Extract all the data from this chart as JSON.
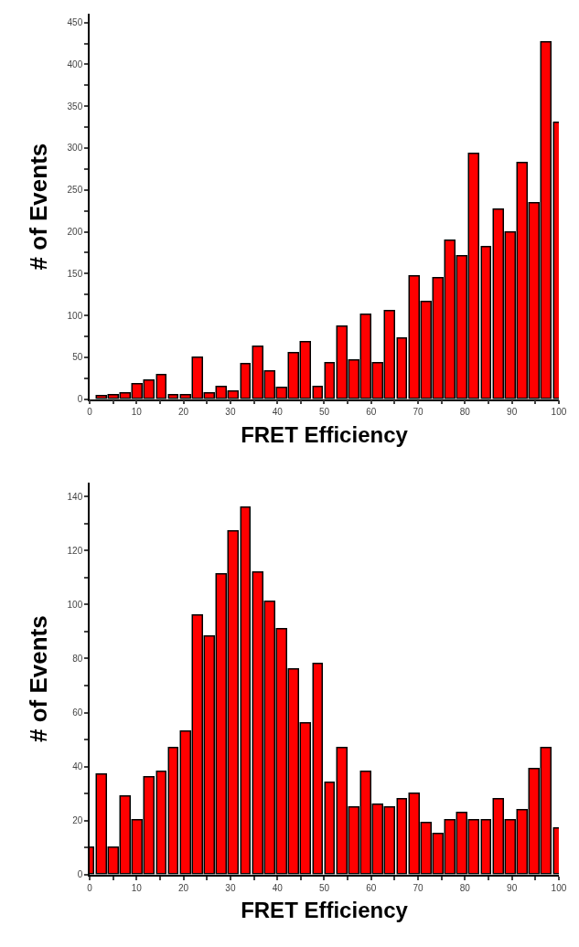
{
  "chart_data": [
    {
      "type": "bar",
      "xlabel": "FRET Efficiency",
      "ylabel": "# of Events",
      "color": "#ff0000",
      "grid": false,
      "x": [
        2.56,
        5.13,
        7.69,
        10.26,
        12.82,
        15.38,
        17.95,
        20.51,
        23.08,
        25.64,
        28.21,
        30.77,
        33.33,
        35.9,
        38.46,
        41.03,
        43.59,
        46.15,
        48.72,
        51.28,
        53.85,
        56.41,
        58.97,
        61.54,
        64.1,
        66.67,
        69.23,
        71.79,
        74.36,
        76.92,
        79.49,
        82.05,
        84.62,
        87.18,
        89.74,
        92.31,
        94.87,
        97.44,
        100
      ],
      "values": [
        4,
        5,
        7,
        18,
        22,
        29,
        5,
        5,
        49,
        7,
        15,
        9,
        42,
        63,
        33,
        13,
        55,
        68,
        15,
        43,
        87,
        46,
        101,
        43,
        105,
        72,
        147,
        116,
        144,
        189,
        171,
        293,
        182,
        226,
        199,
        282,
        234,
        426,
        330
      ],
      "xlim": [
        0,
        100
      ],
      "ylim": [
        0,
        460
      ],
      "xticks": [
        0,
        {
          "value": 5,
          "label": null
        },
        10,
        {
          "value": 15,
          "label": null
        },
        20,
        {
          "value": 25,
          "label": null
        },
        30,
        {
          "value": 35,
          "label": null
        },
        40,
        {
          "value": 45,
          "label": null
        },
        50,
        {
          "value": 55,
          "label": null
        },
        60,
        {
          "value": 65,
          "label": null
        },
        70,
        {
          "value": 75,
          "label": null
        },
        80,
        {
          "value": 85,
          "label": null
        },
        90,
        {
          "value": 95,
          "label": null
        },
        100
      ],
      "yticks": [
        0,
        {
          "value": 25,
          "label": null
        },
        50,
        {
          "value": 75,
          "label": null
        },
        100,
        {
          "value": 125,
          "label": null
        },
        150,
        {
          "value": 175,
          "label": null
        },
        200,
        {
          "value": 225,
          "label": null
        },
        250,
        {
          "value": 275,
          "label": null
        },
        300,
        {
          "value": 325,
          "label": null
        },
        350,
        {
          "value": 375,
          "label": null
        },
        400,
        {
          "value": 425,
          "label": null
        },
        450
      ]
    },
    {
      "type": "bar",
      "xlabel": "FRET Efficiency",
      "ylabel": "# of Events",
      "color": "#ff0000",
      "grid": false,
      "x": [
        0,
        2.56,
        5.13,
        7.69,
        10.26,
        12.82,
        15.38,
        17.95,
        20.51,
        23.08,
        25.64,
        28.21,
        30.77,
        33.33,
        35.9,
        38.46,
        41.03,
        43.59,
        46.15,
        48.72,
        51.28,
        53.85,
        56.41,
        58.97,
        61.54,
        64.1,
        66.67,
        69.23,
        71.79,
        74.36,
        76.92,
        79.49,
        82.05,
        84.62,
        87.18,
        89.74,
        92.31,
        94.87,
        97.44,
        100
      ],
      "values": [
        10,
        37,
        10,
        29,
        20,
        36,
        38,
        47,
        53,
        96,
        88,
        111,
        127,
        136,
        112,
        101,
        91,
        76,
        56,
        78,
        34,
        47,
        25,
        38,
        26,
        25,
        28,
        30,
        19,
        15,
        20,
        23,
        20,
        20,
        28,
        20,
        24,
        39,
        47,
        17
      ],
      "xlim": [
        0,
        100
      ],
      "ylim": [
        0,
        145
      ],
      "xticks": [
        0,
        {
          "value": 5,
          "label": null
        },
        10,
        {
          "value": 15,
          "label": null
        },
        20,
        {
          "value": 25,
          "label": null
        },
        30,
        {
          "value": 35,
          "label": null
        },
        40,
        {
          "value": 45,
          "label": null
        },
        50,
        {
          "value": 55,
          "label": null
        },
        60,
        {
          "value": 65,
          "label": null
        },
        70,
        {
          "value": 75,
          "label": null
        },
        80,
        {
          "value": 85,
          "label": null
        },
        90,
        {
          "value": 95,
          "label": null
        },
        100
      ],
      "yticks": [
        0,
        {
          "value": 10,
          "label": null
        },
        20,
        {
          "value": 30,
          "label": null
        },
        40,
        {
          "value": 50,
          "label": null
        },
        60,
        {
          "value": 70,
          "label": null
        },
        80,
        {
          "value": 90,
          "label": null
        },
        100,
        {
          "value": 110,
          "label": null
        },
        120,
        {
          "value": 130,
          "label": null
        },
        140
      ]
    }
  ]
}
